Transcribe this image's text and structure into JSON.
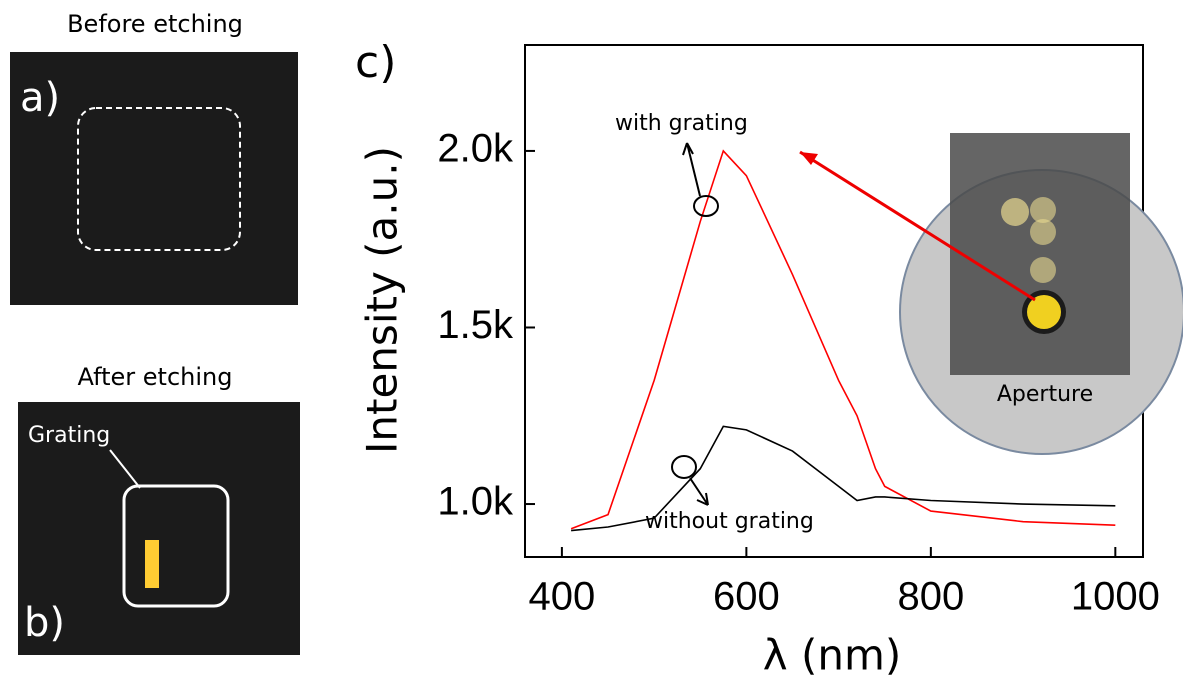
{
  "panels": [
    {
      "title": "Before etching",
      "label": "a)"
    },
    {
      "title": "After etching",
      "label": "b)",
      "note": "Grating"
    }
  ],
  "chart_data": {
    "type": "line",
    "panel_label": "c)",
    "x_label": "λ (nm)",
    "y_label": "Intensity (a.u.)",
    "x": [
      410,
      450,
      500,
      550,
      575,
      600,
      650,
      700,
      720,
      740,
      750,
      800,
      900,
      1000
    ],
    "series": [
      {
        "name": "with grating",
        "color": "#ff0000",
        "values": [
          930,
          970,
          1350,
          1800,
          2000,
          1930,
          1650,
          1350,
          1250,
          1100,
          1050,
          980,
          950,
          940
        ]
      },
      {
        "name": "without grating",
        "color": "#000000",
        "values": [
          925,
          935,
          960,
          1100,
          1220,
          1210,
          1150,
          1050,
          1010,
          1020,
          1020,
          1010,
          1000,
          995
        ]
      }
    ],
    "xlim": [
      360,
      1030
    ],
    "ylim": [
      850,
      2300
    ],
    "xticks": [
      400,
      600,
      800,
      1000
    ],
    "yticks": [
      {
        "value": 1000,
        "label": "1.0k"
      },
      {
        "value": 1500,
        "label": "1.5k"
      },
      {
        "value": 2000,
        "label": "2.0k"
      }
    ],
    "inset_label": "Aperture"
  }
}
